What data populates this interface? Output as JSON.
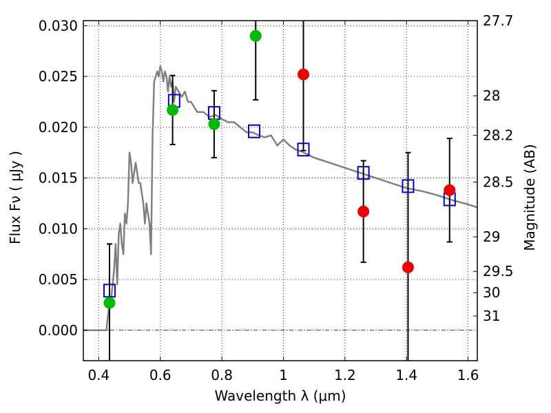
{
  "chart_data": {
    "type": "scatter",
    "title": "",
    "xlabel": "Wavelength  λ (μm)",
    "ylabel": "Flux  Fν  ( μJy )",
    "ylabel2": "Magnitude (AB)",
    "xlim": [
      0.35,
      1.63
    ],
    "ylim": [
      -0.003,
      0.0305
    ],
    "grid": true,
    "x_ticks": [
      0.4,
      0.6,
      0.8,
      1.0,
      1.2,
      1.4,
      1.6
    ],
    "x_tick_labels": [
      "0.4",
      "0.6",
      "0.8",
      "1",
      "1.2",
      "1.4",
      "1.6"
    ],
    "y_ticks": [
      0.0,
      0.005,
      0.01,
      0.015,
      0.02,
      0.025,
      0.03
    ],
    "y_tick_labels": [
      "0.000",
      "0.005",
      "0.010",
      "0.015",
      "0.020",
      "0.025",
      "0.030"
    ],
    "right_ticks": [
      {
        "label": "27.7",
        "flux": 0.0305
      },
      {
        "label": "28",
        "flux": 0.0231
      },
      {
        "label": "28.2",
        "flux": 0.0192
      },
      {
        "label": "28.5",
        "flux": 0.0146
      },
      {
        "label": "29",
        "flux": 0.0092
      },
      {
        "label": "29.5",
        "flux": 0.0058
      },
      {
        "label": "30",
        "flux": 0.0037
      },
      {
        "label": "31",
        "flux": 0.0014
      }
    ],
    "series": [
      {
        "type": "line",
        "color": "#808080",
        "x": [
          0.35,
          0.425,
          0.43,
          0.435,
          0.44,
          0.445,
          0.45,
          0.455,
          0.46,
          0.465,
          0.47,
          0.475,
          0.48,
          0.485,
          0.49,
          0.495,
          0.5,
          0.505,
          0.51,
          0.515,
          0.52,
          0.525,
          0.53,
          0.535,
          0.54,
          0.545,
          0.55,
          0.555,
          0.56,
          0.565,
          0.57,
          0.575,
          0.58,
          0.585,
          0.59,
          0.595,
          0.6,
          0.605,
          0.61,
          0.615,
          0.62,
          0.625,
          0.63,
          0.635,
          0.64,
          0.645,
          0.65,
          0.66,
          0.67,
          0.68,
          0.69,
          0.7,
          0.72,
          0.74,
          0.76,
          0.78,
          0.8,
          0.82,
          0.84,
          0.86,
          0.88,
          0.9,
          0.92,
          0.94,
          0.96,
          0.98,
          1.0,
          1.02,
          1.04,
          1.06,
          1.08,
          1.1,
          1.12,
          1.15,
          1.2,
          1.25,
          1.3,
          1.35,
          1.4,
          1.45,
          1.5,
          1.55,
          1.6,
          1.63
        ],
        "values": [
          0.0,
          0.0,
          0.0015,
          0.0025,
          0.003,
          0.0045,
          0.006,
          0.0085,
          0.0045,
          0.0095,
          0.0105,
          0.0085,
          0.0075,
          0.0115,
          0.0105,
          0.0125,
          0.0175,
          0.0165,
          0.0145,
          0.0155,
          0.0165,
          0.0155,
          0.0145,
          0.0145,
          0.0135,
          0.0125,
          0.0105,
          0.0125,
          0.0115,
          0.0105,
          0.0075,
          0.019,
          0.0245,
          0.025,
          0.0255,
          0.025,
          0.026,
          0.0255,
          0.0245,
          0.0255,
          0.025,
          0.0235,
          0.025,
          0.024,
          0.0245,
          0.0225,
          0.024,
          0.0235,
          0.023,
          0.0235,
          0.0225,
          0.0225,
          0.0215,
          0.0215,
          0.021,
          0.0212,
          0.0208,
          0.0205,
          0.0205,
          0.02,
          0.0195,
          0.0195,
          0.0192,
          0.019,
          0.0192,
          0.0182,
          0.0188,
          0.0182,
          0.0178,
          0.0176,
          0.0173,
          0.017,
          0.0168,
          0.0165,
          0.016,
          0.0155,
          0.015,
          0.0145,
          0.014,
          0.0137,
          0.0133,
          0.0128,
          0.0124,
          0.0121
        ]
      },
      {
        "type": "markers",
        "marker": "open-square",
        "color": "#0000cc",
        "x": [
          0.435,
          0.645,
          0.775,
          0.905,
          1.065,
          1.26,
          1.405,
          1.54
        ],
        "values": [
          0.0039,
          0.0226,
          0.0214,
          0.0196,
          0.0178,
          0.0155,
          0.0142,
          0.0129
        ]
      },
      {
        "type": "markers",
        "marker": "filled-circle",
        "color": "#00bb00",
        "x": [
          0.435,
          0.64,
          0.775,
          0.91
        ],
        "values": [
          0.0027,
          0.0217,
          0.0203,
          0.029
        ],
        "err": [
          0.0058,
          0.0034,
          0.0033,
          0.0063
        ]
      },
      {
        "type": "markers",
        "marker": "filled-circle",
        "color": "#ee0000",
        "x": [
          1.065,
          1.26,
          1.405,
          1.54
        ],
        "values": [
          0.0252,
          0.0117,
          0.0062,
          0.0138
        ],
        "err": [
          0.0075,
          0.005,
          0.0113,
          0.0051
        ]
      }
    ]
  }
}
